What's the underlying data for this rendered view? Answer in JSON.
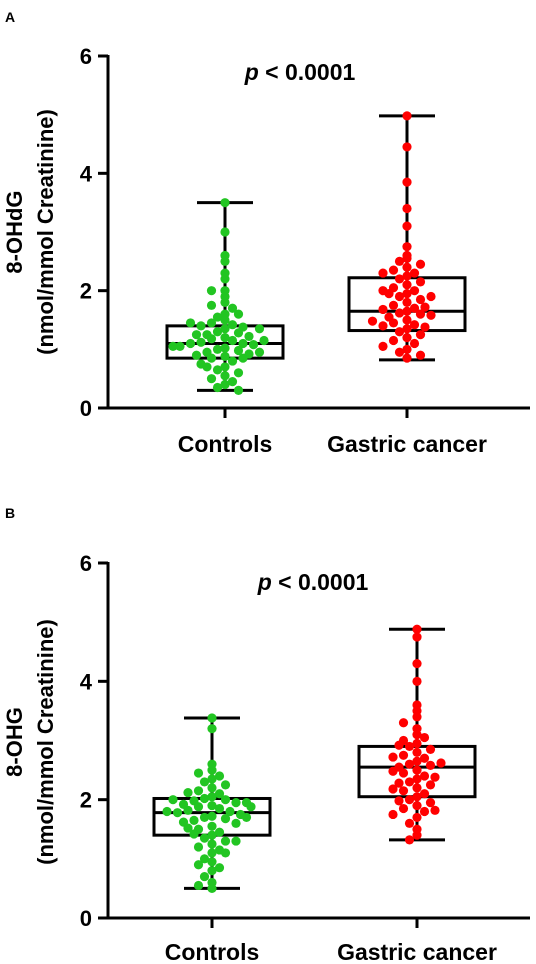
{
  "chart_data": [
    {
      "panel": "A",
      "type": "box",
      "ylabel": "8-OHdG",
      "ylabel_unit": "(nmol/mmol Creatinine)",
      "ylim": [
        0,
        6
      ],
      "yticks": [
        "0",
        "2",
        "4",
        "6"
      ],
      "annotation": "p < 0.0001",
      "annotation_p": "p",
      "annotation_rest": " < 0.0001",
      "categories": [
        "Controls",
        "Gastric cancer"
      ],
      "colors": [
        "#22c522",
        "#ff0000"
      ],
      "boxes": [
        {
          "min": 0.3,
          "q1": 0.85,
          "median": 1.1,
          "q3": 1.4,
          "max": 3.5
        },
        {
          "min": 0.82,
          "q1": 1.32,
          "median": 1.65,
          "q3": 2.22,
          "max": 4.98
        }
      ],
      "points": [
        [
          3.5,
          3.0,
          2.6,
          2.5,
          2.3,
          2.2,
          2.0,
          2.0,
          1.9,
          1.8,
          1.75,
          1.7,
          1.6,
          1.55,
          1.5,
          1.45,
          1.42,
          1.4,
          1.38,
          1.35,
          1.3,
          1.28,
          1.25,
          1.22,
          1.2,
          1.18,
          1.15,
          1.12,
          1.1,
          1.1,
          1.08,
          1.05,
          1.02,
          1.0,
          0.98,
          0.95,
          0.92,
          0.9,
          0.88,
          0.85,
          0.8,
          0.75,
          0.7,
          0.65,
          0.6,
          0.55,
          0.5,
          0.45,
          0.4,
          0.35,
          0.3,
          1.45,
          1.15,
          0.95,
          0.7,
          1.25,
          1.05,
          0.85,
          1.6,
          1.35
        ],
        [
          4.98,
          4.45,
          3.85,
          3.4,
          3.1,
          2.75,
          2.6,
          2.55,
          2.5,
          2.45,
          2.4,
          2.35,
          2.3,
          2.25,
          2.2,
          2.15,
          2.1,
          2.05,
          2.0,
          1.95,
          1.9,
          1.85,
          1.8,
          1.75,
          1.7,
          1.68,
          1.65,
          1.62,
          1.6,
          1.55,
          1.5,
          1.45,
          1.42,
          1.4,
          1.38,
          1.35,
          1.3,
          1.25,
          1.2,
          1.15,
          1.1,
          1.05,
          1.0,
          0.95,
          0.9,
          0.85,
          2.0,
          1.72,
          1.58,
          1.48,
          1.95,
          2.3,
          1.9
        ]
      ]
    },
    {
      "panel": "B",
      "type": "box",
      "ylabel": "8-OHG",
      "ylabel_unit": "(nmol/mmol Creatinine)",
      "ylim": [
        0,
        6
      ],
      "yticks": [
        "0",
        "2",
        "4",
        "6"
      ],
      "annotation": "p < 0.0001",
      "annotation_p": "p",
      "annotation_rest": " < 0.0001",
      "categories": [
        "Controls",
        "Gastric cancer"
      ],
      "colors": [
        "#22c522",
        "#ff0000"
      ],
      "boxes": [
        {
          "min": 0.5,
          "q1": 1.4,
          "median": 1.78,
          "q3": 2.02,
          "max": 3.38
        },
        {
          "min": 1.32,
          "q1": 2.05,
          "median": 2.55,
          "q3": 2.9,
          "max": 4.88
        }
      ],
      "points": [
        [
          3.38,
          3.2,
          2.6,
          2.5,
          2.45,
          2.4,
          2.35,
          2.3,
          2.25,
          2.2,
          2.15,
          2.1,
          2.05,
          2.02,
          2.0,
          1.98,
          1.95,
          1.92,
          1.9,
          1.88,
          1.85,
          1.82,
          1.8,
          1.78,
          1.75,
          1.72,
          1.7,
          1.68,
          1.65,
          1.6,
          1.55,
          1.5,
          1.45,
          1.4,
          1.35,
          1.3,
          1.25,
          1.2,
          1.15,
          1.1,
          1.0,
          0.95,
          0.9,
          0.85,
          0.8,
          0.7,
          0.6,
          0.55,
          0.5,
          1.95,
          1.8,
          1.62,
          2.12,
          1.42,
          1.88,
          2.0,
          1.7,
          1.52,
          1.3,
          1.1
        ],
        [
          4.88,
          4.75,
          4.3,
          4.0,
          3.6,
          3.5,
          3.4,
          3.3,
          3.2,
          3.1,
          3.0,
          2.95,
          2.9,
          2.85,
          2.8,
          2.75,
          2.7,
          2.65,
          2.6,
          2.58,
          2.55,
          2.5,
          2.45,
          2.4,
          2.35,
          2.3,
          2.25,
          2.2,
          2.15,
          2.1,
          2.05,
          2.0,
          1.95,
          1.9,
          1.85,
          1.8,
          1.75,
          1.7,
          1.6,
          1.5,
          1.4,
          1.32,
          2.72,
          2.48,
          2.28,
          2.62,
          3.05,
          2.18,
          2.92,
          2.38,
          1.98,
          1.82
        ]
      ]
    }
  ]
}
